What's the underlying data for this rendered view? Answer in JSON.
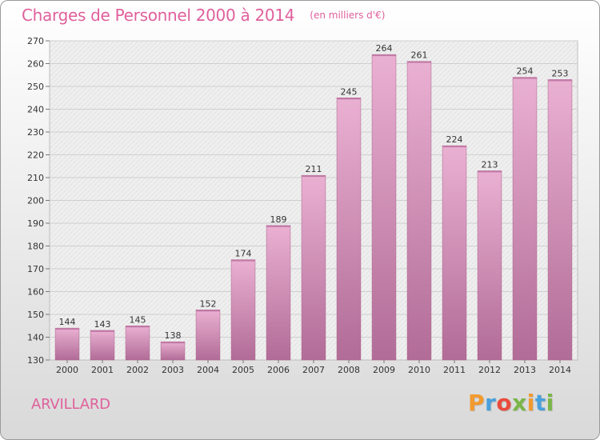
{
  "header": {
    "title": "Charges de Personnel 2000 à 2014",
    "subtitle": "(en milliers d'€)"
  },
  "footer": {
    "commune": "ARVILLARD",
    "brand": "Proxiti"
  },
  "colors": {
    "accent": "#e0609c",
    "bar_top": "#eab0d2",
    "bar_bottom": "#b16c97",
    "plot_bg": "#eeeeee",
    "brand_letters": [
      "#f29a2e",
      "#4aa0dc",
      "#e84c3d",
      "#7ab648",
      "#f29a2e",
      "#4aa0dc",
      "#7ab648"
    ]
  },
  "chart_data": {
    "type": "bar",
    "title": "Charges de Personnel 2000 à 2014",
    "subtitle": "(en milliers d'€)",
    "xlabel": "",
    "ylabel": "",
    "categories": [
      "2000",
      "2001",
      "2002",
      "2003",
      "2004",
      "2005",
      "2006",
      "2007",
      "2008",
      "2009",
      "2010",
      "2011",
      "2012",
      "2013",
      "2014"
    ],
    "values": [
      144,
      143,
      145,
      138,
      152,
      174,
      189,
      211,
      245,
      264,
      261,
      224,
      213,
      254,
      253
    ],
    "ylim": [
      130,
      270
    ],
    "yticks": [
      130,
      140,
      150,
      160,
      170,
      180,
      190,
      200,
      210,
      220,
      230,
      240,
      250,
      260,
      270
    ],
    "grid": true,
    "data_labels": true
  }
}
